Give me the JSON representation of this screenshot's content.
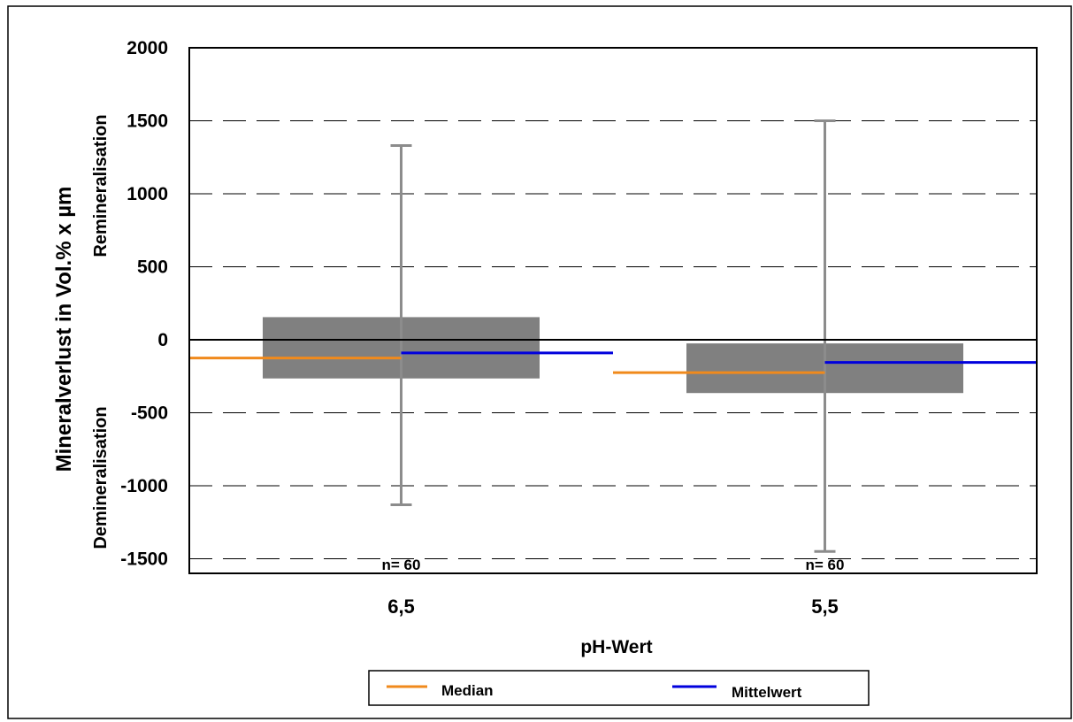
{
  "chart_data": {
    "type": "box",
    "xlabel": "pH-Wert",
    "ylabel": "Mineralverlust in Vol.% x µm",
    "side_labels": {
      "top": "Remineralisation",
      "bottom": "Demineralisation"
    },
    "ylim": [
      -1600,
      2000
    ],
    "yticks": [
      2000,
      1500,
      1000,
      500,
      0,
      -500,
      -1000,
      -1500
    ],
    "grid": "dashed-horizontal",
    "categories": [
      "6,5",
      "5,5"
    ],
    "boxes": [
      {
        "category": "6,5",
        "q1": -265,
        "q3": 155,
        "min": -1130,
        "max": 1330,
        "median": -125,
        "mean": -90,
        "n_label": "n= 60"
      },
      {
        "category": "5,5",
        "q1": -365,
        "q3": -25,
        "min": -1450,
        "max": 1500,
        "median": -225,
        "mean": -155,
        "n_label": "n= 60"
      }
    ],
    "legend": {
      "placement": "bottom-center",
      "entries": [
        {
          "name": "Median",
          "color": "#f08a1c"
        },
        {
          "name": "Mittelwert",
          "color": "#0000dd"
        }
      ]
    }
  },
  "colors": {
    "box": "#808080",
    "whisker": "#8c8c8c",
    "zero_line": "#000000",
    "grid": "#000000"
  }
}
